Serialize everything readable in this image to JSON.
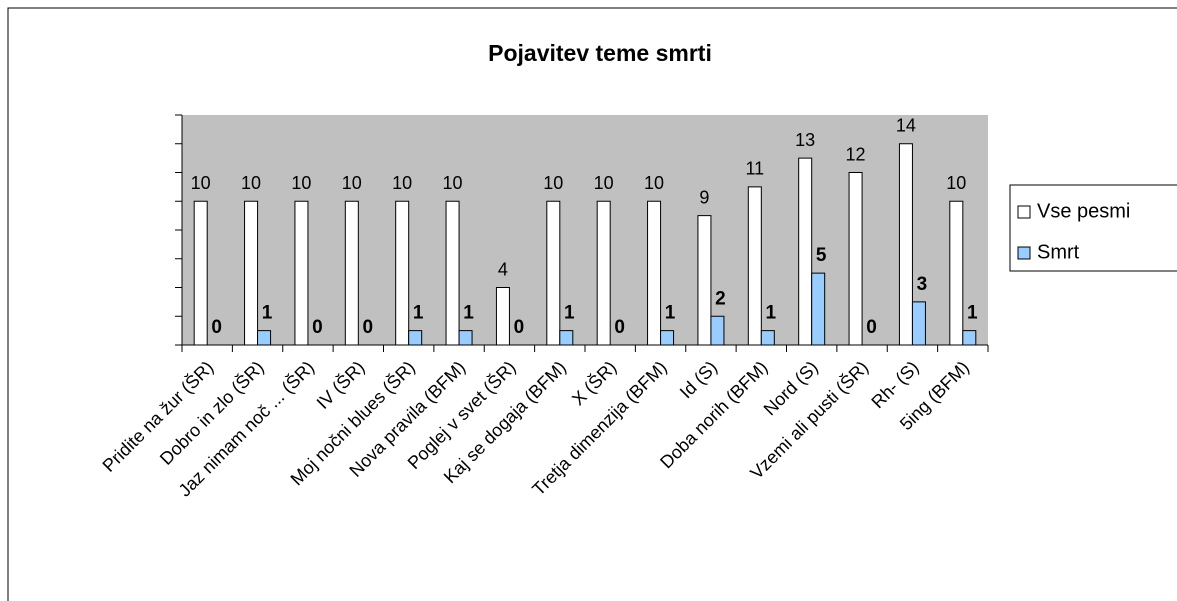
{
  "chart_data": {
    "type": "bar",
    "title": "Pojavitev teme smrti",
    "categories": [
      "Pridite na žur (ŠR)",
      "Dobro in zlo (ŠR)",
      "Jaz nimam noč ... (ŠR)",
      "IV (ŠR)",
      "Moj nočni blues (ŠR)",
      "Nova pravila (BFM)",
      "Poglej v svet (ŠR)",
      "Kaj se dogaja (BFM)",
      "X (ŠR)",
      "Tretja dimenzija (BFM)",
      "Id (S)",
      "Doba norih (BFM)",
      "Nord (S)",
      "Vzemi ali pusti (ŠR)",
      "Rh- (S)",
      "5ing (BFM)"
    ],
    "series": [
      {
        "name": "Vse pesmi",
        "color": "#ffffff",
        "values": [
          10,
          10,
          10,
          10,
          10,
          10,
          4,
          10,
          10,
          10,
          9,
          11,
          13,
          12,
          14,
          10
        ]
      },
      {
        "name": "Smrt",
        "color": "#99ccff",
        "values": [
          0,
          1,
          0,
          0,
          1,
          1,
          0,
          1,
          0,
          1,
          2,
          1,
          5,
          0,
          3,
          1
        ]
      }
    ],
    "ylim": [
      0,
      16
    ],
    "yticks": [
      0,
      2,
      4,
      6,
      8,
      10,
      12,
      14,
      16
    ],
    "legend": "right",
    "plot_background": "#c0c0c0"
  }
}
